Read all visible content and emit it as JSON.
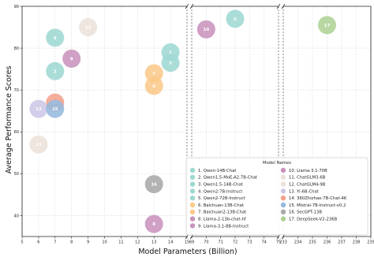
{
  "chart_data": {
    "type": "scatter",
    "title": "",
    "xlabel": "Model Parameters (Billion)",
    "ylabel": "Average Performance Scores",
    "ylim": [
      35,
      90
    ],
    "yticks": [
      40,
      50,
      60,
      70,
      80,
      90
    ],
    "grid": true,
    "x_axis_breaks": true,
    "panels": [
      {
        "xlim": [
          5,
          15
        ],
        "xticks": [
          5,
          6,
          7,
          8,
          9,
          10,
          11,
          12,
          13,
          14,
          15
        ]
      },
      {
        "xlim": [
          69,
          75
        ],
        "xticks": [
          69,
          70,
          71,
          72,
          73,
          74,
          75
        ]
      },
      {
        "xlim": [
          233,
          239
        ],
        "xticks": [
          233,
          234,
          235,
          236,
          237,
          238,
          239
        ]
      }
    ],
    "legend": {
      "title": "Model Names",
      "position": "lower-right",
      "columns": 2
    },
    "points": [
      {
        "id": "1",
        "name": "1. Qwen-14B-Chat",
        "x": 14,
        "y": 79,
        "color": "#9fd8d3"
      },
      {
        "id": "2",
        "name": "2. Qwen1.5-MoE-A2.7B-Chat",
        "x": 7,
        "y": 74.5,
        "color": "#9fd8d3"
      },
      {
        "id": "3",
        "name": "3. Qwen1.5-14B-Chat",
        "x": 14,
        "y": 76.5,
        "color": "#9fd8d3"
      },
      {
        "id": "4",
        "name": "4. Qwen2-7B-Instruct",
        "x": 7,
        "y": 82.5,
        "color": "#9fd8d3"
      },
      {
        "id": "5",
        "name": "5. Qwen2-72B-Instruct",
        "x": 72,
        "y": 87,
        "color": "#9fd8d3"
      },
      {
        "id": "6",
        "name": "6. Baichuan-13B-Chat",
        "x": 13,
        "y": 71,
        "color": "#fbc98a"
      },
      {
        "id": "7",
        "name": "7. Baichuan2-13B-Chat",
        "x": 13,
        "y": 74,
        "color": "#fbc98a"
      },
      {
        "id": "8",
        "name": "8. Llama-2-13b-chat-hf",
        "x": 13,
        "y": 38,
        "color": "#c993bd"
      },
      {
        "id": "9",
        "name": "9. Llama-3.1-8B-Instruct",
        "x": 8,
        "y": 77.5,
        "color": "#c993bd"
      },
      {
        "id": "10",
        "name": "10. Llama-3.1-70B",
        "x": 70,
        "y": 84.5,
        "color": "#c993bd"
      },
      {
        "id": "11",
        "name": "11. ChatGLM3-6B",
        "x": 6,
        "y": 57,
        "color": "#ece1da"
      },
      {
        "id": "12",
        "name": "12. ChatGLM4-9B",
        "x": 9,
        "y": 85,
        "color": "#ece1da"
      },
      {
        "id": "13",
        "name": "13. Yi-6B-Chat",
        "x": 6,
        "y": 65.5,
        "color": "#cdc7e6"
      },
      {
        "id": "14",
        "name": "14. 360Zhizhao-7B-Chat-4K",
        "x": 7,
        "y": 67,
        "color": "#f4a28e"
      },
      {
        "id": "15",
        "name": "15. Mistral-7B-Instruct-v0.2",
        "x": 7,
        "y": 65.5,
        "color": "#95b9de"
      },
      {
        "id": "16",
        "name": "16. SecGPT-13B",
        "x": 13,
        "y": 47.5,
        "color": "#a9a9a9"
      },
      {
        "id": "17",
        "name": "17. DeepSeek-V2-236B",
        "x": 236,
        "y": 85.5,
        "color": "#aed295"
      }
    ]
  }
}
